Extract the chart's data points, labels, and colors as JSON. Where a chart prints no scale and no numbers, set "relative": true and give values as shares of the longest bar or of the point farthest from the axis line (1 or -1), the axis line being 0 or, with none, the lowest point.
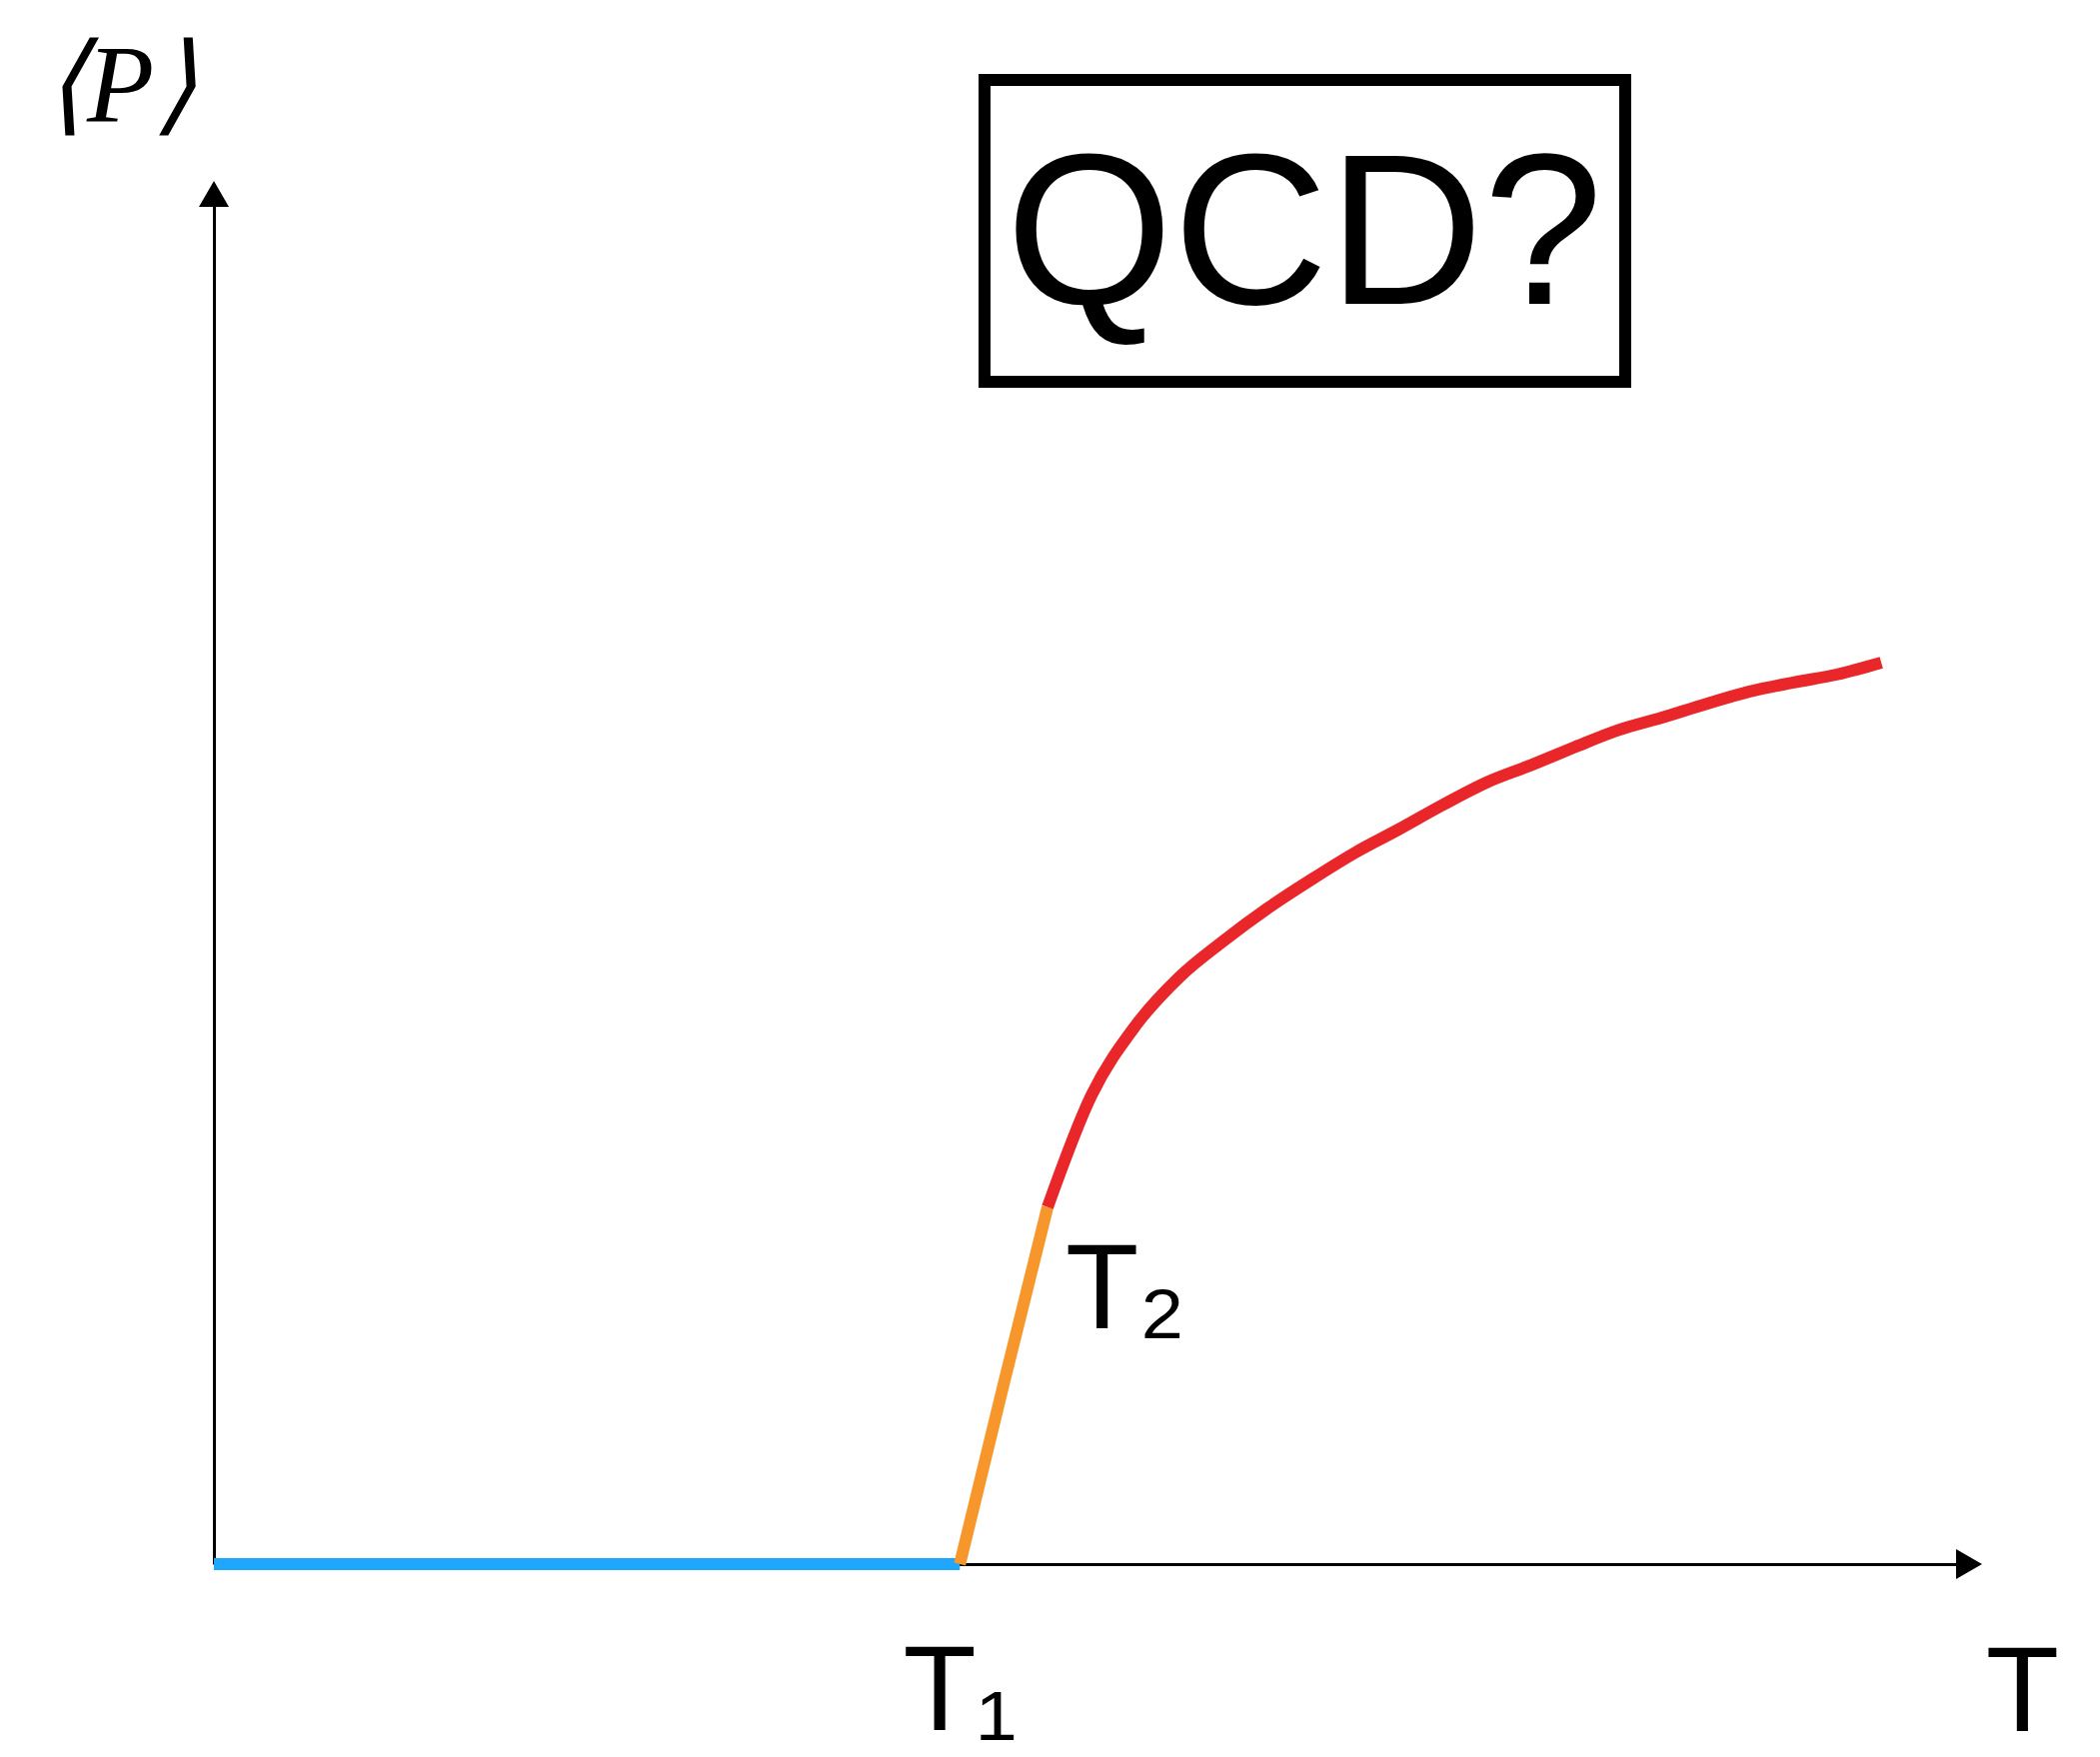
{
  "chart_data": {
    "type": "line",
    "relative": true,
    "title": "QCD?",
    "xlabel": "T",
    "ylabel": "⟨P⟩",
    "annotations": [
      "T₂",
      "T₁"
    ],
    "categories": [
      null,
      null,
      null,
      null,
      null,
      null,
      null,
      null,
      null,
      null,
      null,
      null,
      null,
      null,
      null,
      null,
      null,
      null,
      null,
      null,
      null,
      null,
      null,
      null,
      null,
      null,
      null,
      null,
      null,
      null,
      null,
      null,
      null,
      null,
      null,
      null,
      null,
      null,
      null,
      null,
      null
    ],
    "series": [
      {
        "color": "#1ea7fd",
        "values": [
          0,
          0,
          0,
          0,
          0,
          0,
          0,
          0,
          0,
          0,
          0,
          0,
          0,
          0,
          0,
          0,
          0,
          0,
          null,
          null,
          null,
          null,
          null,
          null,
          null,
          null,
          null,
          null,
          null,
          null,
          null,
          null,
          null,
          null,
          null,
          null,
          null,
          null,
          null,
          null,
          null
        ]
      },
      {
        "color": "#f7962a",
        "values": [
          null,
          null,
          null,
          null,
          null,
          null,
          null,
          null,
          null,
          null,
          null,
          null,
          null,
          null,
          null,
          null,
          null,
          0,
          0.2,
          0.396,
          null,
          null,
          null,
          null,
          null,
          null,
          null,
          null,
          null,
          null,
          null,
          null,
          null,
          null,
          null,
          null,
          null,
          null,
          null,
          null,
          null
        ]
      },
      {
        "color": "#e9262a",
        "values": [
          null,
          null,
          null,
          null,
          null,
          null,
          null,
          null,
          null,
          null,
          null,
          null,
          null,
          null,
          null,
          null,
          null,
          null,
          null,
          0.396,
          0.52,
          0.597,
          0.651,
          0.691,
          0.727,
          0.759,
          0.789,
          0.815,
          0.842,
          0.867,
          0.886,
          0.906,
          0.925,
          0.939,
          0.954,
          0.968,
          0.978,
          0.987,
          1,
          null,
          null
        ]
      }
    ],
    "grid": false,
    "line_style": "solid"
  }
}
